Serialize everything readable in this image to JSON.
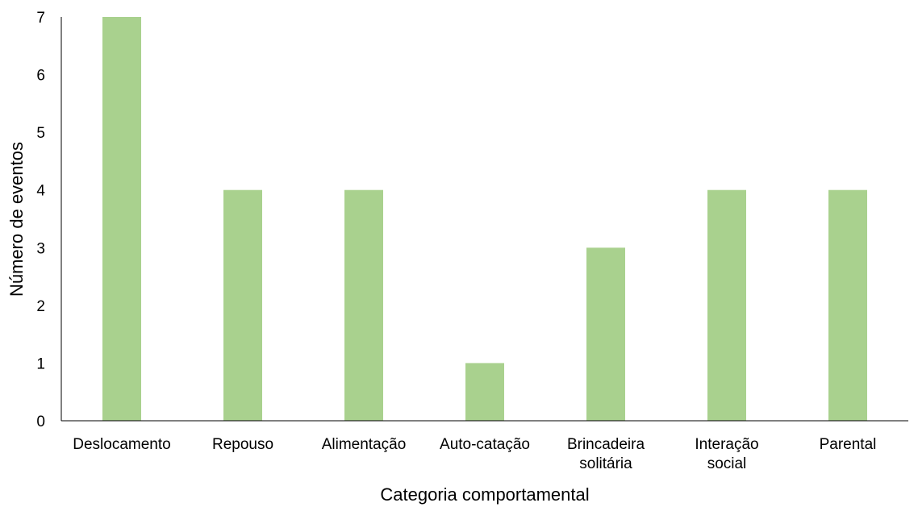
{
  "chart_data": {
    "type": "bar",
    "title": "",
    "xlabel": "Categoria comportamental",
    "ylabel": "Número de eventos",
    "categories": [
      [
        "Deslocamento"
      ],
      [
        "Repouso"
      ],
      [
        "Alimentação"
      ],
      [
        "Auto-catação"
      ],
      [
        "Brincadeira",
        "solitária"
      ],
      [
        "Interação",
        "social"
      ],
      [
        "Parental"
      ]
    ],
    "values": [
      7,
      4,
      4,
      1,
      3,
      4,
      4
    ],
    "ylim": [
      0,
      7
    ],
    "yticks": [
      "0",
      "1",
      "2",
      "3",
      "4",
      "5",
      "6",
      "7"
    ],
    "grid": false,
    "legend": "none",
    "colors": {
      "bar": "#a9d18e",
      "axis": "#000000",
      "text": "#000000"
    }
  }
}
